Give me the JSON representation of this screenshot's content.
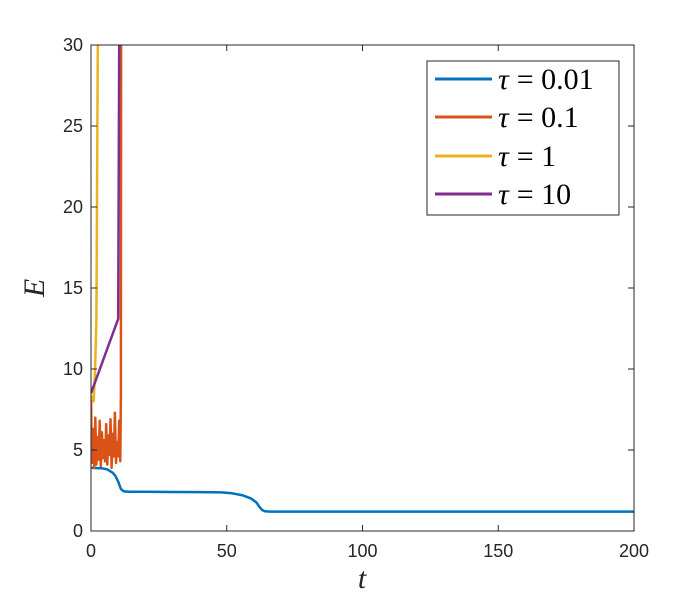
{
  "chart_data": {
    "type": "line",
    "xlabel": "t",
    "ylabel": "E",
    "xlim": [
      0,
      200
    ],
    "ylim": [
      0,
      30
    ],
    "xticks": [
      "0",
      "50",
      "100",
      "150",
      "200"
    ],
    "yticks": [
      "0",
      "5",
      "10",
      "15",
      "20",
      "25",
      "30"
    ],
    "grid": false,
    "legend_position": "top-right",
    "series": [
      {
        "name": "τ = 0.01",
        "label_sym": "τ",
        "label_val": "= 0.01",
        "color": "#0072BD",
        "points": [
          [
            0,
            3.9
          ],
          [
            2,
            3.88
          ],
          [
            4,
            3.87
          ],
          [
            6,
            3.8
          ],
          [
            8,
            3.6
          ],
          [
            9,
            3.4
          ],
          [
            10,
            3.05
          ],
          [
            11,
            2.6
          ],
          [
            12,
            2.45
          ],
          [
            14,
            2.42
          ],
          [
            20,
            2.42
          ],
          [
            30,
            2.41
          ],
          [
            40,
            2.4
          ],
          [
            48,
            2.38
          ],
          [
            52,
            2.33
          ],
          [
            56,
            2.2
          ],
          [
            59,
            2.0
          ],
          [
            61,
            1.75
          ],
          [
            62,
            1.5
          ],
          [
            63,
            1.3
          ],
          [
            64,
            1.22
          ],
          [
            66,
            1.2
          ],
          [
            100,
            1.2
          ],
          [
            150,
            1.2
          ],
          [
            200,
            1.2
          ]
        ]
      },
      {
        "name": "τ = 0.1",
        "label_sym": "τ",
        "label_val": "= 0.1",
        "color": "#D95319",
        "points": [
          [
            0,
            8.3
          ],
          [
            0.3,
            4.2
          ],
          [
            0.8,
            6.3
          ],
          [
            1.2,
            3.9
          ],
          [
            1.6,
            7.0
          ],
          [
            2.0,
            4.1
          ],
          [
            2.4,
            5.8
          ],
          [
            2.8,
            4.4
          ],
          [
            3.2,
            6.8
          ],
          [
            3.6,
            4.0
          ],
          [
            4.0,
            6.1
          ],
          [
            4.4,
            4.5
          ],
          [
            4.8,
            5.6
          ],
          [
            5.2,
            4.3
          ],
          [
            5.6,
            6.6
          ],
          [
            6.0,
            4.1
          ],
          [
            6.4,
            5.9
          ],
          [
            6.8,
            4.7
          ],
          [
            7.2,
            6.9
          ],
          [
            7.6,
            3.9
          ],
          [
            8.0,
            6.0
          ],
          [
            8.4,
            4.6
          ],
          [
            8.8,
            7.3
          ],
          [
            9.2,
            4.2
          ],
          [
            9.6,
            5.5
          ],
          [
            10.0,
            4.6
          ],
          [
            10.4,
            6.8
          ],
          [
            10.8,
            4.3
          ],
          [
            11.0,
            8.5
          ],
          [
            11.1,
            30
          ]
        ]
      },
      {
        "name": "τ = 1",
        "label_sym": "τ",
        "label_val": "= 1",
        "color": "#EDB120",
        "points": [
          [
            0,
            8.1
          ],
          [
            0.5,
            8.3
          ],
          [
            1,
            8.0
          ],
          [
            1.5,
            10.0
          ],
          [
            2,
            13.0
          ],
          [
            2.5,
            30
          ]
        ]
      },
      {
        "name": "τ = 10",
        "label_sym": "τ",
        "label_val": "= 10",
        "color": "#7E2F8E",
        "points": [
          [
            0,
            8.5
          ],
          [
            10,
            13.1
          ],
          [
            10.4,
            30
          ]
        ]
      }
    ]
  }
}
